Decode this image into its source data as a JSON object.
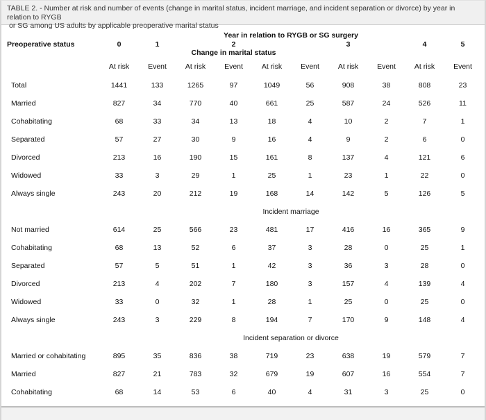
{
  "caption": {
    "line1": "TABLE 2. - Number at risk and number of events (change in marital status, incident marriage, and incident separation or divorce) by year in relation to RYGB",
    "line2": "or SG among US adults by applicable preoperative marital status"
  },
  "table": {
    "year_group_header": "Year in relation to RYGB or SG surgery",
    "row_label_header": "Preoperative status",
    "years": [
      "0",
      "1",
      "2",
      "3",
      "4",
      "5"
    ],
    "subheader": "Change in marital status",
    "col_headers": {
      "at_risk": "At risk",
      "event": "Event"
    },
    "sections": [
      {
        "label": "",
        "rows": [
          {
            "label": "Total",
            "values": [
              1441,
              133,
              1265,
              97,
              1049,
              56,
              908,
              38,
              808,
              23
            ]
          },
          {
            "label": "Married",
            "values": [
              827,
              34,
              770,
              40,
              661,
              25,
              587,
              24,
              526,
              11
            ]
          },
          {
            "label": "Cohabitating",
            "values": [
              68,
              33,
              34,
              13,
              18,
              4,
              10,
              2,
              7,
              1
            ]
          },
          {
            "label": "Separated",
            "values": [
              57,
              27,
              30,
              9,
              16,
              4,
              9,
              2,
              6,
              0
            ]
          },
          {
            "label": "Divorced",
            "values": [
              213,
              16,
              190,
              15,
              161,
              8,
              137,
              4,
              121,
              6
            ]
          },
          {
            "label": "Widowed",
            "values": [
              33,
              3,
              29,
              1,
              25,
              1,
              23,
              1,
              22,
              0
            ]
          },
          {
            "label": "Always single",
            "values": [
              243,
              20,
              212,
              19,
              168,
              14,
              142,
              5,
              126,
              5
            ]
          }
        ]
      },
      {
        "label": "Incident marriage",
        "rows": [
          {
            "label": "Not married",
            "values": [
              614,
              25,
              566,
              23,
              481,
              17,
              416,
              16,
              365,
              9
            ]
          },
          {
            "label": "Cohabitating",
            "values": [
              68,
              13,
              52,
              6,
              37,
              3,
              28,
              0,
              25,
              1
            ]
          },
          {
            "label": "Separated",
            "values": [
              57,
              5,
              51,
              1,
              42,
              3,
              36,
              3,
              28,
              0
            ]
          },
          {
            "label": "Divorced",
            "values": [
              213,
              4,
              202,
              7,
              180,
              3,
              157,
              4,
              139,
              4
            ]
          },
          {
            "label": "Widowed",
            "values": [
              33,
              0,
              32,
              1,
              28,
              1,
              25,
              0,
              25,
              0
            ]
          },
          {
            "label": "Always single",
            "values": [
              243,
              3,
              229,
              8,
              194,
              7,
              170,
              9,
              148,
              4
            ]
          }
        ]
      },
      {
        "label": "Incident separation or divorce",
        "rows": [
          {
            "label": "Married or cohabitating",
            "values": [
              895,
              35,
              836,
              38,
              719,
              23,
              638,
              19,
              579,
              7
            ]
          },
          {
            "label": "Married",
            "values": [
              827,
              21,
              783,
              32,
              679,
              19,
              607,
              16,
              554,
              7
            ]
          },
          {
            "label": "Cohabitating",
            "values": [
              68,
              14,
              53,
              6,
              40,
              4,
              31,
              3,
              25,
              0
            ]
          }
        ]
      }
    ]
  },
  "colors": {
    "caption_bg": "#f0f0f0",
    "page_edge": "#d5d5d5",
    "bottom_rule": "#bdbdbd",
    "footer_bg": "#f2f2f2",
    "text": "#111111"
  }
}
